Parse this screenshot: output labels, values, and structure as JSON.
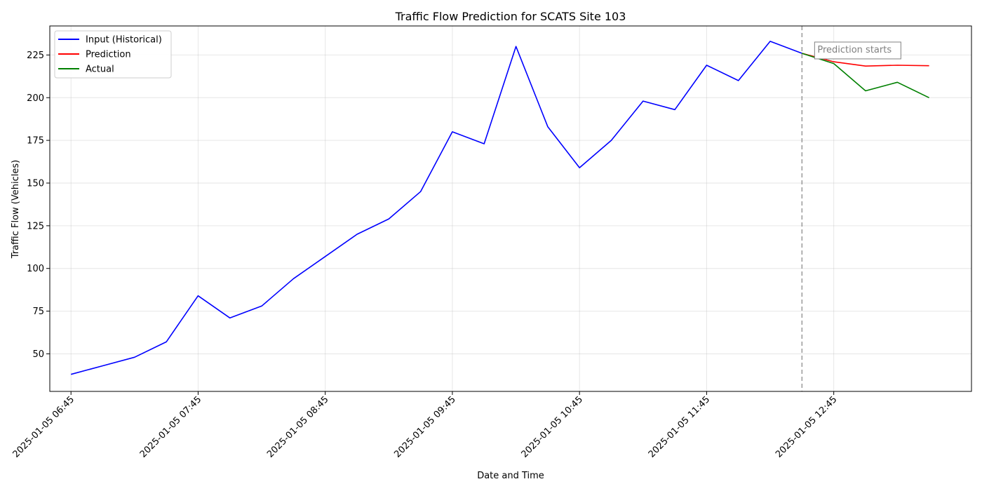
{
  "chart_data": {
    "type": "line",
    "title": "Traffic Flow Prediction for SCATS Site 103",
    "xlabel": "Date and Time",
    "ylabel": "Traffic Flow (Vehicles)",
    "x_unit": "datetime",
    "xlim": [
      "2025-01-05 06:35",
      "2025-01-05 13:50"
    ],
    "ylim": [
      28,
      242
    ],
    "x_ticks": [
      "2025-01-05 06:45",
      "2025-01-05 07:45",
      "2025-01-05 08:45",
      "2025-01-05 09:45",
      "2025-01-05 10:45",
      "2025-01-05 11:45",
      "2025-01-05 12:45"
    ],
    "y_ticks": [
      50,
      75,
      100,
      125,
      150,
      175,
      200,
      225
    ],
    "grid": true,
    "legend_position": "top-left",
    "prediction_start": "2025-01-05 12:30",
    "annotation": "Prediction starts",
    "series": [
      {
        "name": "Input (Historical)",
        "color": "#0000ff",
        "x": [
          "2025-01-05 06:45",
          "2025-01-05 07:00",
          "2025-01-05 07:15",
          "2025-01-05 07:30",
          "2025-01-05 07:45",
          "2025-01-05 08:00",
          "2025-01-05 08:15",
          "2025-01-05 08:30",
          "2025-01-05 08:45",
          "2025-01-05 09:00",
          "2025-01-05 09:15",
          "2025-01-05 09:30",
          "2025-01-05 09:45",
          "2025-01-05 10:00",
          "2025-01-05 10:15",
          "2025-01-05 10:30",
          "2025-01-05 10:45",
          "2025-01-05 11:00",
          "2025-01-05 11:15",
          "2025-01-05 11:30",
          "2025-01-05 11:45",
          "2025-01-05 12:00",
          "2025-01-05 12:15",
          "2025-01-05 12:30"
        ],
        "values": [
          38,
          43,
          48,
          57,
          84,
          71,
          78,
          94,
          107,
          120,
          129,
          145,
          180,
          173,
          230,
          183,
          159,
          175,
          198,
          193,
          219,
          210,
          233,
          226
        ]
      },
      {
        "name": "Prediction",
        "color": "#ff0000",
        "x": [
          "2025-01-05 12:30",
          "2025-01-05 12:45",
          "2025-01-05 13:00",
          "2025-01-05 13:15",
          "2025-01-05 13:30"
        ],
        "values": [
          226,
          221,
          218.5,
          219,
          218.7
        ]
      },
      {
        "name": "Actual",
        "color": "#008000",
        "x": [
          "2025-01-05 12:30",
          "2025-01-05 12:45",
          "2025-01-05 13:00",
          "2025-01-05 13:15",
          "2025-01-05 13:30"
        ],
        "values": [
          226,
          220,
          204,
          209,
          200
        ]
      }
    ]
  }
}
